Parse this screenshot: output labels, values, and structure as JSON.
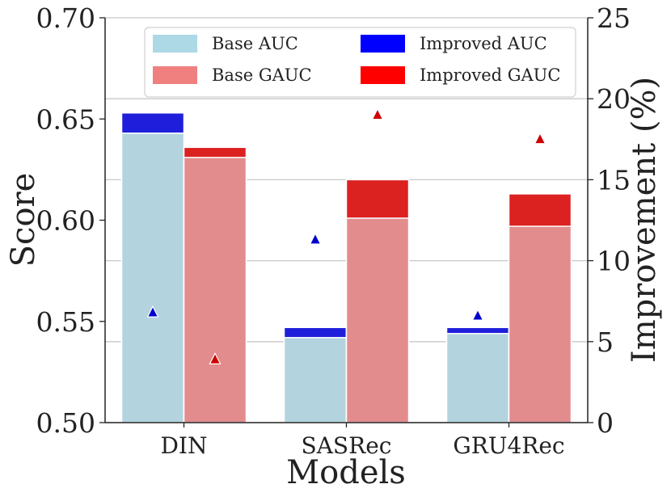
{
  "chart_data": {
    "type": "bar",
    "categories": [
      "DIN",
      "SASRec",
      "GRU4Rec"
    ],
    "xlabel": "Models",
    "ylabel": "Score",
    "y2label": "Improvement (%)",
    "ylim": [
      0.5,
      0.7
    ],
    "y2lim": [
      0,
      25
    ],
    "yticks": [
      "0.50",
      "0.55",
      "0.60",
      "0.65",
      "0.70"
    ],
    "y2ticks": [
      "0",
      "5",
      "10",
      "15",
      "20",
      "25"
    ],
    "grid": "horizontal",
    "legend_position": "top",
    "series": [
      {
        "name": "Base AUC",
        "values": [
          0.643,
          0.542,
          0.544
        ],
        "color": "#b3d4df"
      },
      {
        "name": "Improved AUC",
        "values": [
          0.653,
          0.547,
          0.547
        ],
        "color": "#1f1fdb"
      },
      {
        "name": "Base GAUC",
        "values": [
          0.631,
          0.601,
          0.597
        ],
        "color": "#e28c8e"
      },
      {
        "name": "Improved GAUC",
        "values": [
          0.636,
          0.62,
          0.613
        ],
        "color": "#dc2121"
      }
    ],
    "improvement_markers": [
      {
        "name": "AUC improvement (%)",
        "values": [
          6.8,
          11.3,
          6.6
        ],
        "color": "#0000cc"
      },
      {
        "name": "GAUC improvement (%)",
        "values": [
          3.9,
          19.0,
          17.5
        ],
        "color": "#cc0000"
      }
    ]
  },
  "legend": [
    {
      "label": "Base AUC",
      "color": "#add8e6"
    },
    {
      "label": "Improved AUC",
      "color": "#0000ff"
    },
    {
      "label": "Base GAUC",
      "color": "#f08080"
    },
    {
      "label": "Improved GAUC",
      "color": "#ff0000"
    }
  ]
}
